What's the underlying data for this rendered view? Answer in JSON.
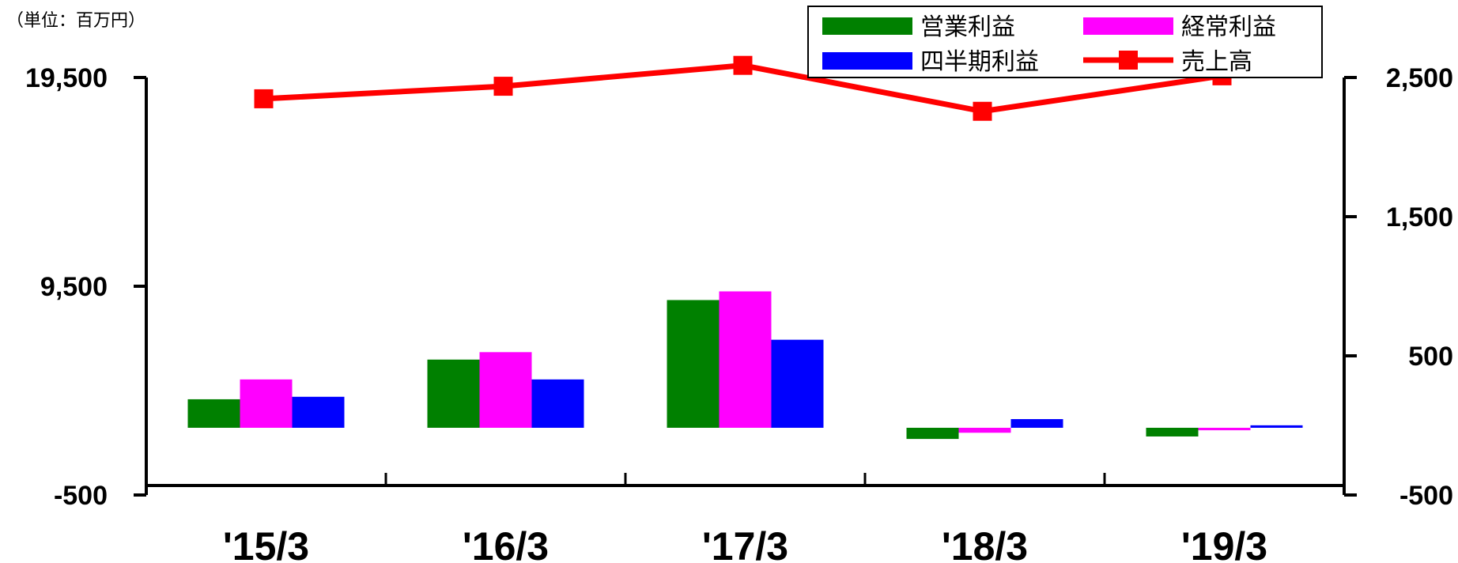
{
  "unit_label": "（単位：百万円）",
  "colors": {
    "operating": "#008000",
    "ordinary": "#FF00FF",
    "net": "#0000FF",
    "sales": "#FF0000"
  },
  "chart_data": {
    "type": "bar",
    "categories": [
      "'15/3",
      "'16/3",
      "'17/3",
      "'18/3",
      "'19/3"
    ],
    "series": [
      {
        "name": "営業利益",
        "type": "bar",
        "axis": "right",
        "color": "#008000",
        "values": [
          230,
          550,
          1030,
          -90,
          -70
        ]
      },
      {
        "name": "経常利益",
        "type": "bar",
        "axis": "right",
        "color": "#FF00FF",
        "values": [
          390,
          610,
          1100,
          -40,
          -20
        ]
      },
      {
        "name": "四半期利益",
        "type": "bar",
        "axis": "right",
        "color": "#0000FF",
        "values": [
          250,
          390,
          710,
          70,
          20
        ]
      },
      {
        "name": "売上高",
        "type": "line",
        "axis": "left",
        "color": "#FF0000",
        "values": [
          16700,
          17300,
          18300,
          16100,
          17800
        ]
      }
    ],
    "y_left": {
      "min": -500,
      "max": 19500,
      "ticks": [
        "19,500",
        "9,500",
        "-500"
      ],
      "tick_values": [
        19500,
        9500,
        -500
      ]
    },
    "y_right": {
      "min": -500,
      "max": 2500,
      "ticks": [
        "2,500",
        "1,500",
        "500",
        "-500"
      ],
      "tick_values": [
        2500,
        1500,
        500,
        -500
      ]
    },
    "legend": {
      "position": "top-right",
      "entries": [
        "営業利益",
        "経常利益",
        "四半期利益",
        "売上高"
      ]
    }
  }
}
